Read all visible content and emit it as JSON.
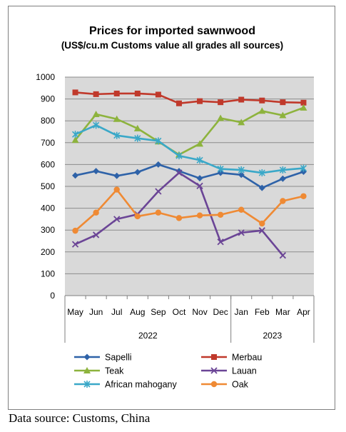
{
  "chart_data": {
    "type": "line",
    "title": "Prices for imported sawnwood",
    "subtitle": "(US$/cu.m Customs value all grades all sources)",
    "categories": [
      "May",
      "Jun",
      "Jul",
      "Aug",
      "Sep",
      "Oct",
      "Nov",
      "Dec",
      "Jan",
      "Feb",
      "Mar",
      "Apr"
    ],
    "year_groups": [
      {
        "label": "2022",
        "start": 0,
        "end": 7
      },
      {
        "label": "2023",
        "start": 8,
        "end": 11
      }
    ],
    "ylim": [
      0,
      1000
    ],
    "yticks": [
      0,
      100,
      200,
      300,
      400,
      500,
      600,
      700,
      800,
      900,
      1000
    ],
    "grid": true,
    "legend_position": "bottom",
    "series": [
      {
        "name": "Sapelli",
        "color": "#2e62a8",
        "marker": "diamond",
        "values": [
          550,
          570,
          548,
          565,
          600,
          570,
          537,
          562,
          553,
          493,
          535,
          567
        ]
      },
      {
        "name": "Merbau",
        "color": "#c0392b",
        "marker": "square",
        "values": [
          930,
          922,
          925,
          925,
          920,
          880,
          890,
          885,
          897,
          893,
          885,
          883
        ]
      },
      {
        "name": "Teak",
        "color": "#8db33d",
        "marker": "triangle",
        "values": [
          712,
          830,
          808,
          765,
          705,
          645,
          695,
          812,
          793,
          845,
          825,
          860
        ]
      },
      {
        "name": "Lauan",
        "color": "#6b4596",
        "marker": "x",
        "values": [
          235,
          278,
          350,
          372,
          477,
          562,
          502,
          246,
          288,
          298,
          184,
          null
        ]
      },
      {
        "name": "African mahogany",
        "color": "#3aa8c8",
        "marker": "star",
        "values": [
          738,
          780,
          733,
          720,
          708,
          640,
          620,
          580,
          575,
          562,
          575,
          583
        ]
      },
      {
        "name": "Oak",
        "color": "#ef8a34",
        "marker": "circle",
        "values": [
          297,
          380,
          485,
          363,
          380,
          355,
          367,
          370,
          393,
          330,
          433,
          455
        ]
      }
    ]
  },
  "source_note": "Data source: Customs, China"
}
